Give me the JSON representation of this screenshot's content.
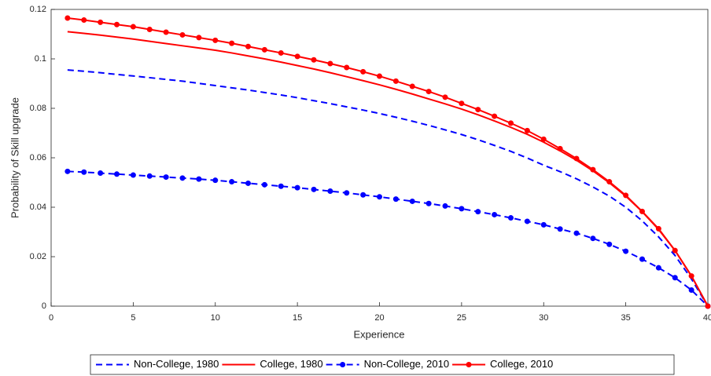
{
  "chart_data": {
    "type": "line",
    "xlabel": "Experience",
    "ylabel": "Probability of Skill upgrade",
    "x": [
      1,
      2,
      3,
      4,
      5,
      6,
      7,
      8,
      9,
      10,
      11,
      12,
      13,
      14,
      15,
      16,
      17,
      18,
      19,
      20,
      21,
      22,
      23,
      24,
      25,
      26,
      27,
      28,
      29,
      30,
      31,
      32,
      33,
      34,
      35,
      36,
      37,
      38,
      39,
      40
    ],
    "series": [
      {
        "name": "Non-College, 1980",
        "color": "#0000ff",
        "linestyle": "dashed",
        "marker": false,
        "values": [
          0.0955,
          0.095,
          0.0944,
          0.0937,
          0.0931,
          0.0924,
          0.0917,
          0.091,
          0.0901,
          0.0892,
          0.0883,
          0.0874,
          0.0864,
          0.0854,
          0.0843,
          0.0831,
          0.0819,
          0.0806,
          0.0793,
          0.0779,
          0.0764,
          0.0748,
          0.0731,
          0.0713,
          0.0694,
          0.0673,
          0.065,
          0.0626,
          0.0599,
          0.057,
          0.0544,
          0.0515,
          0.0482,
          0.0445,
          0.04,
          0.0345,
          0.028,
          0.0205,
          0.011,
          0
        ]
      },
      {
        "name": "College, 1980",
        "color": "#ff0000",
        "linestyle": "solid",
        "marker": false,
        "values": [
          0.111,
          0.1103,
          0.1096,
          0.1088,
          0.108,
          0.1071,
          0.1062,
          0.1053,
          0.1044,
          0.1035,
          0.1024,
          0.1012,
          0.1,
          0.0987,
          0.0973,
          0.0959,
          0.0944,
          0.0928,
          0.0912,
          0.0895,
          0.0877,
          0.0858,
          0.0838,
          0.0818,
          0.0797,
          0.0774,
          0.0749,
          0.0723,
          0.0695,
          0.0663,
          0.0628,
          0.059,
          0.0547,
          0.0499,
          0.0445,
          0.0382,
          0.031,
          0.0225,
          0.0122,
          0
        ]
      },
      {
        "name": "Non-College, 2010",
        "color": "#0000ff",
        "linestyle": "dashed",
        "marker": true,
        "values": [
          0.0545,
          0.0542,
          0.0538,
          0.0534,
          0.053,
          0.0526,
          0.0522,
          0.0518,
          0.0514,
          0.0509,
          0.0503,
          0.0497,
          0.0491,
          0.0485,
          0.0479,
          0.0472,
          0.0465,
          0.0458,
          0.045,
          0.0442,
          0.0433,
          0.0424,
          0.0415,
          0.0405,
          0.0394,
          0.0382,
          0.037,
          0.0357,
          0.0343,
          0.0329,
          0.0312,
          0.0295,
          0.0274,
          0.025,
          0.0222,
          0.019,
          0.0155,
          0.0115,
          0.0065,
          0
        ]
      },
      {
        "name": "College, 2010",
        "color": "#ff0000",
        "linestyle": "solid",
        "marker": true,
        "values": [
          0.1165,
          0.1157,
          0.1148,
          0.1139,
          0.113,
          0.1119,
          0.1108,
          0.1097,
          0.1086,
          0.1075,
          0.1063,
          0.105,
          0.1037,
          0.1024,
          0.101,
          0.0996,
          0.0981,
          0.0965,
          0.0948,
          0.093,
          0.091,
          0.0889,
          0.0868,
          0.0845,
          0.082,
          0.0795,
          0.0768,
          0.074,
          0.071,
          0.0675,
          0.0637,
          0.0597,
          0.0552,
          0.0503,
          0.0448,
          0.0383,
          0.0313,
          0.0225,
          0.0122,
          0
        ]
      }
    ],
    "xlim": [
      0,
      40
    ],
    "xticks": [
      0,
      5,
      10,
      15,
      20,
      25,
      30,
      35,
      40
    ],
    "ylim": [
      0,
      0.12
    ],
    "yticks": [
      0,
      0.02,
      0.04,
      0.06,
      0.08,
      0.1,
      0.12
    ],
    "grid": false,
    "legend": "bottom"
  }
}
